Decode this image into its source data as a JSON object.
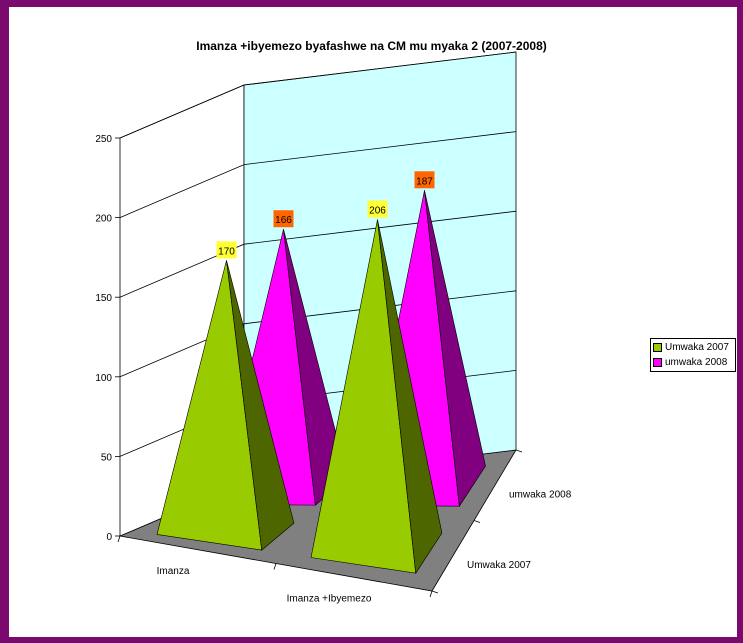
{
  "chart_data": {
    "type": "bar",
    "shape": "3d-pyramid",
    "title": "Imanza +ibyemezo byafashwe na CM mu myaka 2 (2007-2008)",
    "categories": [
      "Imanza",
      "Imanza +Ibyemezo"
    ],
    "depth_labels": [
      "Umwaka 2007",
      "umwaka 2008"
    ],
    "series": [
      {
        "name": "Umwaka 2007",
        "values": [
          170,
          206
        ],
        "color": "#99cc00",
        "label_color": "#ffff33"
      },
      {
        "name": "umwaka 2008",
        "values": [
          166,
          187
        ],
        "color": "#ff00ff",
        "label_color": "#ff6600"
      }
    ],
    "yticks": [
      "0",
      "50",
      "100",
      "150",
      "200",
      "250"
    ],
    "ylim": [
      0,
      250
    ],
    "grid": true,
    "legend": "right",
    "wall_color": "#ccffff",
    "floor_color": "#808080"
  }
}
